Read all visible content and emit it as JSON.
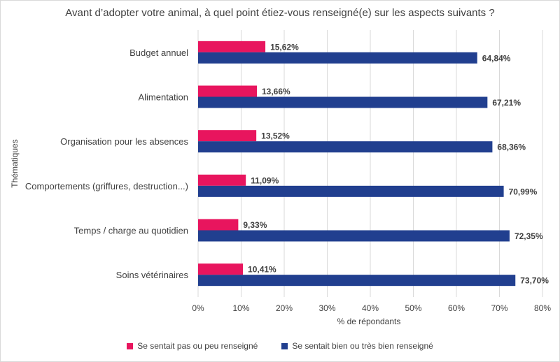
{
  "chart_data": {
    "type": "bar",
    "orientation": "horizontal",
    "title": "Avant d’adopter votre animal, à quel point étiez-vous renseigné(e) sur les aspects suivants ?",
    "xlabel": "% de répondants",
    "ylabel": "Thématiques",
    "xlim": [
      0,
      80
    ],
    "x_ticks": [
      "0%",
      "10%",
      "20%",
      "30%",
      "40%",
      "50%",
      "60%",
      "70%",
      "80%"
    ],
    "grid": "vertical",
    "legend_position": "bottom",
    "categories": [
      "Budget annuel",
      "Alimentation",
      "Organisation pour les absences",
      "Comportements (griffures, destruction...)",
      "Temps / charge au quotidien",
      "Soins vétérinaires"
    ],
    "series": [
      {
        "name": "Se sentait pas ou peu renseigné",
        "color": "#e8155e",
        "values": [
          15.62,
          13.66,
          13.52,
          11.09,
          9.33,
          10.41
        ],
        "labels": [
          "15,62%",
          "13,66%",
          "13,52%",
          "11,09%",
          "9,33%",
          "10,41%"
        ]
      },
      {
        "name": "Se sentait bien ou très bien renseigné",
        "color": "#213f8f",
        "values": [
          64.84,
          67.21,
          68.36,
          70.99,
          72.35,
          73.7
        ],
        "labels": [
          "64,84%",
          "67,21%",
          "68,36%",
          "70,99%",
          "72,35%",
          "73,70%"
        ]
      }
    ]
  }
}
